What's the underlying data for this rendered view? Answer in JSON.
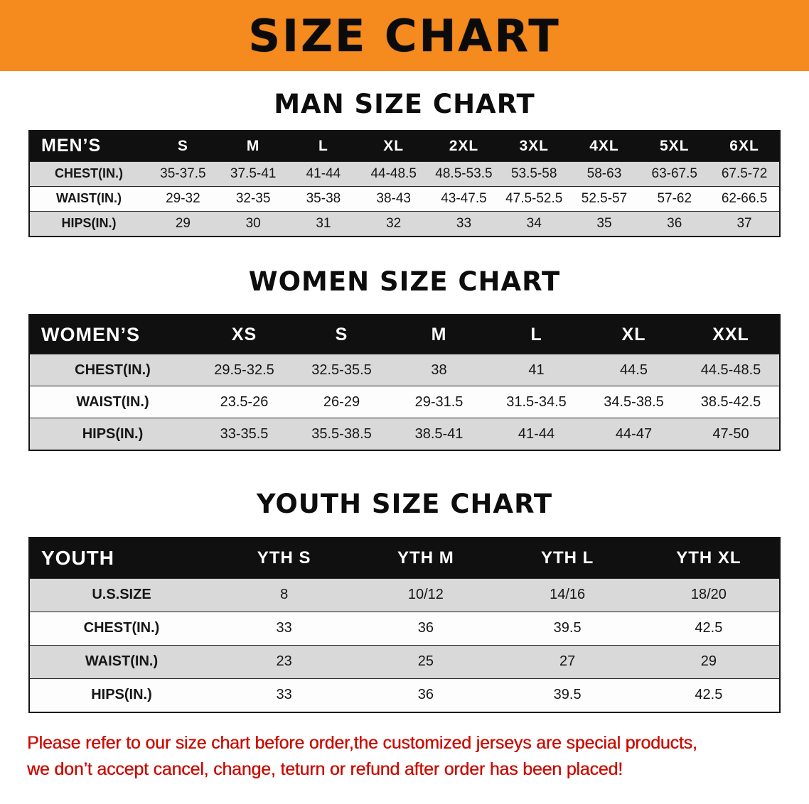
{
  "banner": {
    "title": "SIZE CHART"
  },
  "colors": {
    "banner_bg": "#F58A1F",
    "header_bg": "#101010",
    "row_alt": "#D9D9D9",
    "footer_red": "#CC0A00"
  },
  "sections": {
    "men": {
      "heading": "MAN SIZE CHART",
      "table": {
        "header": [
          "MEN’S",
          "S",
          "M",
          "L",
          "XL",
          "2XL",
          "3XL",
          "4XL",
          "5XL",
          "6XL"
        ],
        "rows": [
          [
            "CHEST(IN.)",
            "35-37.5",
            "37.5-41",
            "41-44",
            "44-48.5",
            "48.5-53.5",
            "53.5-58",
            "58-63",
            "63-67.5",
            "67.5-72"
          ],
          [
            "WAIST(IN.)",
            "29-32",
            "32-35",
            "35-38",
            "38-43",
            "43-47.5",
            "47.5-52.5",
            "52.5-57",
            "57-62",
            "62-66.5"
          ],
          [
            "HIPS(IN.)",
            "29",
            "30",
            "31",
            "32",
            "33",
            "34",
            "35",
            "36",
            "37"
          ]
        ]
      }
    },
    "women": {
      "heading": "WOMEN SIZE CHART",
      "table": {
        "header": [
          "WOMEN’S",
          "XS",
          "S",
          "M",
          "L",
          "XL",
          "XXL"
        ],
        "rows": [
          [
            "CHEST(IN.)",
            "29.5-32.5",
            "32.5-35.5",
            "38",
            "41",
            "44.5",
            "44.5-48.5"
          ],
          [
            "WAIST(IN.)",
            "23.5-26",
            "26-29",
            "29-31.5",
            "31.5-34.5",
            "34.5-38.5",
            "38.5-42.5"
          ],
          [
            "HIPS(IN.)",
            "33-35.5",
            "35.5-38.5",
            "38.5-41",
            "41-44",
            "44-47",
            "47-50"
          ]
        ]
      }
    },
    "youth": {
      "heading": "YOUTH SIZE CHART",
      "table": {
        "header": [
          "YOUTH",
          "YTH S",
          "YTH M",
          "YTH L",
          "YTH XL"
        ],
        "rows": [
          [
            "U.S.SIZE",
            "8",
            "10/12",
            "14/16",
            "18/20"
          ],
          [
            "CHEST(IN.)",
            "33",
            "36",
            "39.5",
            "42.5"
          ],
          [
            "WAIST(IN.)",
            "23",
            "25",
            "27",
            "29"
          ],
          [
            "HIPS(IN.)",
            "33",
            "36",
            "39.5",
            "42.5"
          ]
        ]
      }
    }
  },
  "footer": {
    "line1": "Please refer to our size chart before order,the customized jerseys are special products,",
    "line2": "we don’t accept cancel, change, teturn or refund after order has been placed!"
  }
}
